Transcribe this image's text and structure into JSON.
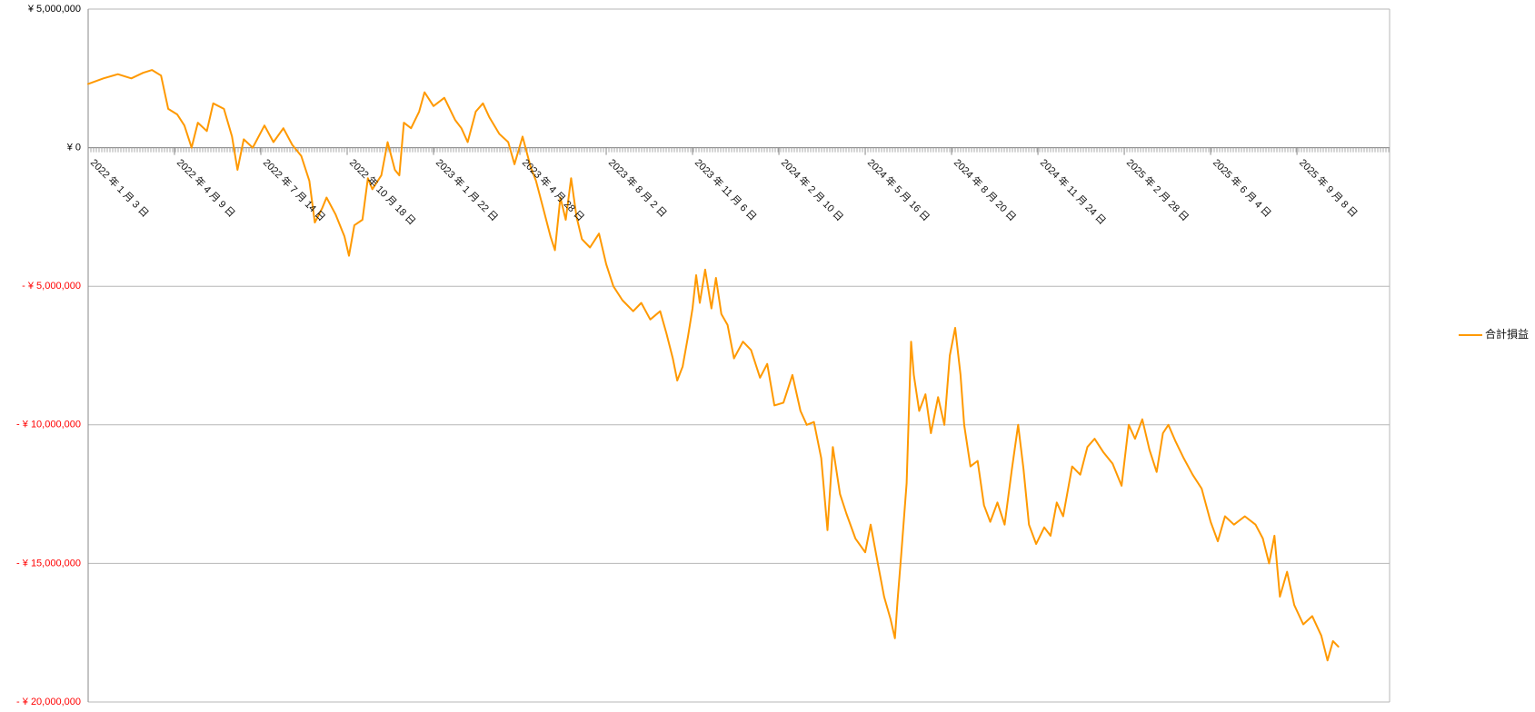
{
  "chart_data": {
    "type": "line",
    "title": "",
    "xlabel": "",
    "ylabel": "",
    "ylim": [
      -20000000,
      5000000
    ],
    "yticks": [
      {
        "value": 5000000,
        "label": "¥ 5,000,000",
        "negative": false
      },
      {
        "value": 0,
        "label": "¥ 0",
        "negative": false
      },
      {
        "value": -5000000,
        "label": "- ¥ 5,000,000",
        "negative": true
      },
      {
        "value": -10000000,
        "label": "- ¥ 10,000,000",
        "negative": true
      },
      {
        "value": -15000000,
        "label": "- ¥ 15,000,000",
        "negative": true
      },
      {
        "value": -20000000,
        "label": "- ¥ 20,000,000",
        "negative": true
      }
    ],
    "xlim": [
      "2022-01-03",
      "2025-12-20"
    ],
    "xticks": [
      {
        "date": "2022-01-03",
        "label": "2022 年 1 月 3 日"
      },
      {
        "date": "2022-04-09",
        "label": "2022 年 4 月 9 日"
      },
      {
        "date": "2022-07-14",
        "label": "2022 年 7 月 14 日"
      },
      {
        "date": "2022-10-18",
        "label": "2022 年 10 月 18 日"
      },
      {
        "date": "2023-01-22",
        "label": "2023 年 1 月 22 日"
      },
      {
        "date": "2023-04-28",
        "label": "2023 年 4 月 28 日"
      },
      {
        "date": "2023-08-02",
        "label": "2023 年 8 月 2 日"
      },
      {
        "date": "2023-11-06",
        "label": "2023 年 11 月 6 日"
      },
      {
        "date": "2024-02-10",
        "label": "2024 年 2 月 10 日"
      },
      {
        "date": "2024-05-16",
        "label": "2024 年 5 月 16 日"
      },
      {
        "date": "2024-08-20",
        "label": "2024 年 8 月 20 日"
      },
      {
        "date": "2024-11-24",
        "label": "2024 年 11 月 24 日"
      },
      {
        "date": "2025-02-28",
        "label": "2025 年 2 月 28 日"
      },
      {
        "date": "2025-06-04",
        "label": "2025 年 6 月 4 日"
      },
      {
        "date": "2025-09-08",
        "label": "2025 年 9 月 8 日"
      }
    ],
    "grid": true,
    "legend_position": "right",
    "series": [
      {
        "name": "合計損益",
        "color": "#ff9900",
        "points": [
          {
            "x": "2022-01-03",
            "y": 2300000
          },
          {
            "x": "2022-01-20",
            "y": 2500000
          },
          {
            "x": "2022-02-05",
            "y": 2650000
          },
          {
            "x": "2022-02-20",
            "y": 2500000
          },
          {
            "x": "2022-03-05",
            "y": 2700000
          },
          {
            "x": "2022-03-15",
            "y": 2800000
          },
          {
            "x": "2022-03-25",
            "y": 2600000
          },
          {
            "x": "2022-04-02",
            "y": 1400000
          },
          {
            "x": "2022-04-12",
            "y": 1200000
          },
          {
            "x": "2022-04-20",
            "y": 800000
          },
          {
            "x": "2022-04-28",
            "y": 0
          },
          {
            "x": "2022-05-05",
            "y": 900000
          },
          {
            "x": "2022-05-15",
            "y": 600000
          },
          {
            "x": "2022-05-22",
            "y": 1600000
          },
          {
            "x": "2022-06-03",
            "y": 1400000
          },
          {
            "x": "2022-06-12",
            "y": 400000
          },
          {
            "x": "2022-06-18",
            "y": -800000
          },
          {
            "x": "2022-06-25",
            "y": 300000
          },
          {
            "x": "2022-07-05",
            "y": 0
          },
          {
            "x": "2022-07-18",
            "y": 800000
          },
          {
            "x": "2022-07-28",
            "y": 200000
          },
          {
            "x": "2022-08-08",
            "y": 700000
          },
          {
            "x": "2022-08-18",
            "y": 100000
          },
          {
            "x": "2022-08-28",
            "y": -300000
          },
          {
            "x": "2022-09-06",
            "y": -1200000
          },
          {
            "x": "2022-09-12",
            "y": -2700000
          },
          {
            "x": "2022-09-20",
            "y": -2200000
          },
          {
            "x": "2022-09-25",
            "y": -1800000
          },
          {
            "x": "2022-10-05",
            "y": -2400000
          },
          {
            "x": "2022-10-15",
            "y": -3200000
          },
          {
            "x": "2022-10-20",
            "y": -3900000
          },
          {
            "x": "2022-10-26",
            "y": -2800000
          },
          {
            "x": "2022-11-04",
            "y": -2600000
          },
          {
            "x": "2022-11-10",
            "y": -1100000
          },
          {
            "x": "2022-11-15",
            "y": -1500000
          },
          {
            "x": "2022-11-25",
            "y": -1000000
          },
          {
            "x": "2022-12-02",
            "y": 200000
          },
          {
            "x": "2022-12-10",
            "y": -800000
          },
          {
            "x": "2022-12-15",
            "y": -1000000
          },
          {
            "x": "2022-12-20",
            "y": 900000
          },
          {
            "x": "2022-12-28",
            "y": 700000
          },
          {
            "x": "2023-01-06",
            "y": 1300000
          },
          {
            "x": "2023-01-12",
            "y": 2000000
          },
          {
            "x": "2023-01-22",
            "y": 1500000
          },
          {
            "x": "2023-02-03",
            "y": 1800000
          },
          {
            "x": "2023-02-15",
            "y": 1000000
          },
          {
            "x": "2023-02-22",
            "y": 700000
          },
          {
            "x": "2023-03-01",
            "y": 200000
          },
          {
            "x": "2023-03-10",
            "y": 1300000
          },
          {
            "x": "2023-03-18",
            "y": 1600000
          },
          {
            "x": "2023-03-25",
            "y": 1100000
          },
          {
            "x": "2023-04-05",
            "y": 500000
          },
          {
            "x": "2023-04-15",
            "y": 200000
          },
          {
            "x": "2023-04-22",
            "y": -600000
          },
          {
            "x": "2023-05-01",
            "y": 400000
          },
          {
            "x": "2023-05-10",
            "y": -700000
          },
          {
            "x": "2023-05-16",
            "y": -1200000
          },
          {
            "x": "2023-05-24",
            "y": -2200000
          },
          {
            "x": "2023-06-01",
            "y": -3200000
          },
          {
            "x": "2023-06-06",
            "y": -3700000
          },
          {
            "x": "2023-06-12",
            "y": -1800000
          },
          {
            "x": "2023-06-18",
            "y": -2600000
          },
          {
            "x": "2023-06-24",
            "y": -1100000
          },
          {
            "x": "2023-06-30",
            "y": -2500000
          },
          {
            "x": "2023-07-06",
            "y": -3300000
          },
          {
            "x": "2023-07-15",
            "y": -3600000
          },
          {
            "x": "2023-07-25",
            "y": -3100000
          },
          {
            "x": "2023-08-02",
            "y": -4200000
          },
          {
            "x": "2023-08-10",
            "y": -5000000
          },
          {
            "x": "2023-08-20",
            "y": -5500000
          },
          {
            "x": "2023-09-01",
            "y": -5900000
          },
          {
            "x": "2023-09-10",
            "y": -5600000
          },
          {
            "x": "2023-09-20",
            "y": -6200000
          },
          {
            "x": "2023-10-01",
            "y": -5900000
          },
          {
            "x": "2023-10-08",
            "y": -6700000
          },
          {
            "x": "2023-10-15",
            "y": -7600000
          },
          {
            "x": "2023-10-20",
            "y": -8400000
          },
          {
            "x": "2023-10-26",
            "y": -7900000
          },
          {
            "x": "2023-11-01",
            "y": -6800000
          },
          {
            "x": "2023-11-06",
            "y": -5800000
          },
          {
            "x": "2023-11-10",
            "y": -4600000
          },
          {
            "x": "2023-11-14",
            "y": -5600000
          },
          {
            "x": "2023-11-20",
            "y": -4400000
          },
          {
            "x": "2023-11-27",
            "y": -5800000
          },
          {
            "x": "2023-12-02",
            "y": -4700000
          },
          {
            "x": "2023-12-08",
            "y": -6000000
          },
          {
            "x": "2023-12-15",
            "y": -6400000
          },
          {
            "x": "2023-12-22",
            "y": -7600000
          },
          {
            "x": "2024-01-01",
            "y": -7000000
          },
          {
            "x": "2024-01-10",
            "y": -7300000
          },
          {
            "x": "2024-01-20",
            "y": -8300000
          },
          {
            "x": "2024-01-28",
            "y": -7800000
          },
          {
            "x": "2024-02-05",
            "y": -9300000
          },
          {
            "x": "2024-02-15",
            "y": -9200000
          },
          {
            "x": "2024-02-25",
            "y": -8200000
          },
          {
            "x": "2024-03-05",
            "y": -9500000
          },
          {
            "x": "2024-03-12",
            "y": -10000000
          },
          {
            "x": "2024-03-20",
            "y": -9900000
          },
          {
            "x": "2024-03-28",
            "y": -11200000
          },
          {
            "x": "2024-04-04",
            "y": -13800000
          },
          {
            "x": "2024-04-10",
            "y": -10800000
          },
          {
            "x": "2024-04-18",
            "y": -12500000
          },
          {
            "x": "2024-04-25",
            "y": -13200000
          },
          {
            "x": "2024-05-05",
            "y": -14100000
          },
          {
            "x": "2024-05-16",
            "y": -14600000
          },
          {
            "x": "2024-05-22",
            "y": -13600000
          },
          {
            "x": "2024-05-30",
            "y": -15000000
          },
          {
            "x": "2024-06-06",
            "y": -16200000
          },
          {
            "x": "2024-06-13",
            "y": -17000000
          },
          {
            "x": "2024-06-18",
            "y": -17700000
          },
          {
            "x": "2024-06-21",
            "y": -16300000
          },
          {
            "x": "2024-06-25",
            "y": -14700000
          },
          {
            "x": "2024-07-01",
            "y": -12100000
          },
          {
            "x": "2024-07-06",
            "y": -7000000
          },
          {
            "x": "2024-07-09",
            "y": -8200000
          },
          {
            "x": "2024-07-15",
            "y": -9500000
          },
          {
            "x": "2024-07-22",
            "y": -8900000
          },
          {
            "x": "2024-07-28",
            "y": -10300000
          },
          {
            "x": "2024-08-05",
            "y": -9000000
          },
          {
            "x": "2024-08-12",
            "y": -10000000
          },
          {
            "x": "2024-08-18",
            "y": -7500000
          },
          {
            "x": "2024-08-24",
            "y": -6500000
          },
          {
            "x": "2024-08-30",
            "y": -8200000
          },
          {
            "x": "2024-09-03",
            "y": -10000000
          },
          {
            "x": "2024-09-10",
            "y": -11500000
          },
          {
            "x": "2024-09-18",
            "y": -11300000
          },
          {
            "x": "2024-09-25",
            "y": -12900000
          },
          {
            "x": "2024-10-02",
            "y": -13500000
          },
          {
            "x": "2024-10-10",
            "y": -12800000
          },
          {
            "x": "2024-10-18",
            "y": -13600000
          },
          {
            "x": "2024-10-26",
            "y": -11600000
          },
          {
            "x": "2024-11-02",
            "y": -10000000
          },
          {
            "x": "2024-11-08",
            "y": -11600000
          },
          {
            "x": "2024-11-14",
            "y": -13600000
          },
          {
            "x": "2024-11-22",
            "y": -14300000
          },
          {
            "x": "2024-12-01",
            "y": -13700000
          },
          {
            "x": "2024-12-08",
            "y": -14000000
          },
          {
            "x": "2024-12-15",
            "y": -12800000
          },
          {
            "x": "2024-12-22",
            "y": -13300000
          },
          {
            "x": "2025-01-01",
            "y": -11500000
          },
          {
            "x": "2025-01-10",
            "y": -11800000
          },
          {
            "x": "2025-01-18",
            "y": -10800000
          },
          {
            "x": "2025-01-26",
            "y": -10500000
          },
          {
            "x": "2025-02-05",
            "y": -11000000
          },
          {
            "x": "2025-02-15",
            "y": -11400000
          },
          {
            "x": "2025-02-25",
            "y": -12200000
          },
          {
            "x": "2025-03-05",
            "y": -10000000
          },
          {
            "x": "2025-03-12",
            "y": -10500000
          },
          {
            "x": "2025-03-20",
            "y": -9800000
          },
          {
            "x": "2025-03-28",
            "y": -10900000
          },
          {
            "x": "2025-04-05",
            "y": -11700000
          },
          {
            "x": "2025-04-12",
            "y": -10300000
          },
          {
            "x": "2025-04-18",
            "y": -10000000
          },
          {
            "x": "2025-04-26",
            "y": -10600000
          },
          {
            "x": "2025-05-05",
            "y": -11200000
          },
          {
            "x": "2025-05-15",
            "y": -11800000
          },
          {
            "x": "2025-05-25",
            "y": -12300000
          },
          {
            "x": "2025-06-04",
            "y": -13500000
          },
          {
            "x": "2025-06-12",
            "y": -14200000
          },
          {
            "x": "2025-06-20",
            "y": -13300000
          },
          {
            "x": "2025-06-30",
            "y": -13600000
          },
          {
            "x": "2025-07-12",
            "y": -13300000
          },
          {
            "x": "2025-07-24",
            "y": -13600000
          },
          {
            "x": "2025-08-01",
            "y": -14100000
          },
          {
            "x": "2025-08-08",
            "y": -15000000
          },
          {
            "x": "2025-08-14",
            "y": -14000000
          },
          {
            "x": "2025-08-20",
            "y": -16200000
          },
          {
            "x": "2025-08-28",
            "y": -15300000
          },
          {
            "x": "2025-09-05",
            "y": -16500000
          },
          {
            "x": "2025-09-15",
            "y": -17200000
          },
          {
            "x": "2025-09-25",
            "y": -16900000
          },
          {
            "x": "2025-10-05",
            "y": -17600000
          },
          {
            "x": "2025-10-12",
            "y": -18500000
          },
          {
            "x": "2025-10-18",
            "y": -17800000
          },
          {
            "x": "2025-10-24",
            "y": -18000000
          }
        ]
      }
    ],
    "colors": {
      "line": "#ff9900",
      "negative_label": "#ff0000",
      "positive_label": "#000000",
      "gridline": "#b7b7b7",
      "axis": "#888888"
    }
  }
}
